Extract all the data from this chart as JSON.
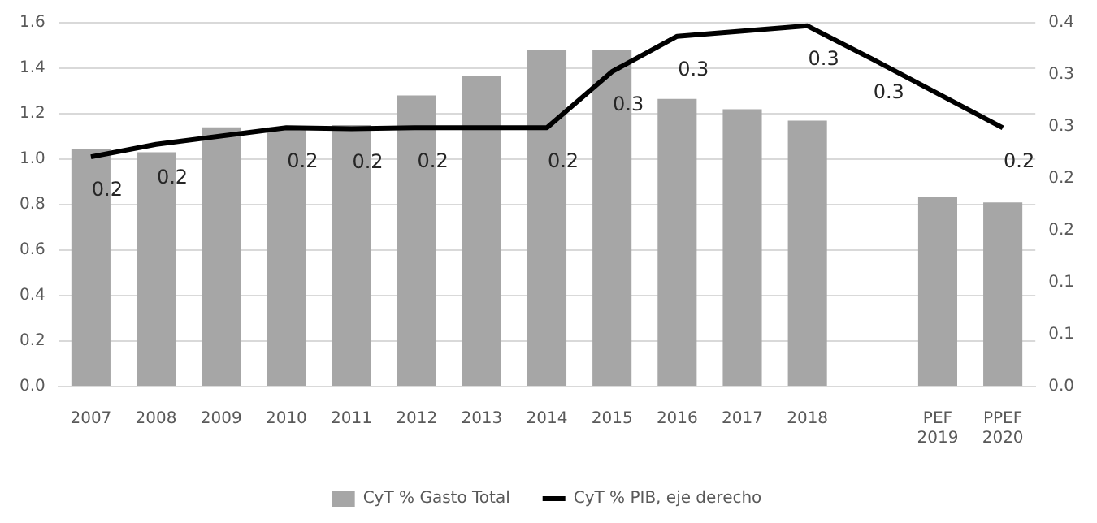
{
  "chart_data": {
    "type": "bar",
    "categories": [
      "2007",
      "2008",
      "2009",
      "2010",
      "2011",
      "2012",
      "2013",
      "2014",
      "2015",
      "2016",
      "2017",
      "2018",
      null,
      "PEF 2019",
      "PPEF 2020"
    ],
    "series": [
      {
        "name": "CyT % Gasto Total",
        "color": "#a6a6a6",
        "values": [
          1.045,
          1.03,
          1.14,
          1.14,
          1.15,
          1.28,
          1.365,
          1.48,
          1.48,
          1.265,
          1.22,
          1.17,
          null,
          0.835,
          0.81
        ]
      },
      {
        "name": "CyT % PIB, eje derecho",
        "type": "line",
        "axis": "y2",
        "color": "#000000",
        "values": [
          0.221,
          0.233,
          null,
          0.249,
          0.248,
          0.249,
          null,
          0.249,
          0.303,
          0.337,
          null,
          0.347,
          0.315,
          null,
          0.249
        ],
        "value_labels": [
          "0.2",
          "0.2",
          null,
          "0.2",
          "0.2",
          "0.2",
          null,
          "0.2",
          "0.3",
          "0.3",
          null,
          "0.3",
          "0.3",
          null,
          "0.2"
        ]
      }
    ],
    "ylim": [
      0,
      1.6
    ],
    "yticks": [
      {
        "value": 0,
        "label": "0.0"
      },
      0.2,
      0.4,
      0.6,
      0.8,
      {
        "value": 1,
        "label": "1.0"
      },
      1.2,
      1.4,
      1.6
    ],
    "y2lim": [
      0,
      0.35
    ],
    "y2ticks": [
      {
        "value": 0,
        "label": "0.0"
      },
      {
        "value": 0.05,
        "label": "0.1"
      },
      {
        "value": 0.1,
        "label": "0.1"
      },
      {
        "value": 0.15,
        "label": "0.2"
      },
      {
        "value": 0.2,
        "label": "0.2"
      },
      {
        "value": 0.25,
        "label": "0.3"
      },
      {
        "value": 0.3,
        "label": "0.3"
      },
      {
        "value": 0.35,
        "label": "0.4"
      }
    ],
    "grid": "y",
    "legend": "bottom",
    "marker": "none",
    "line_style": "solid"
  }
}
